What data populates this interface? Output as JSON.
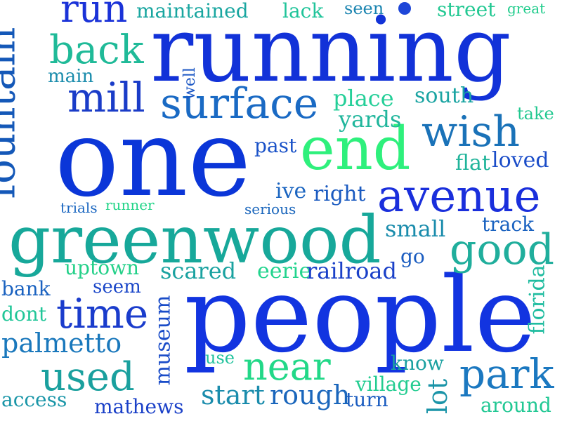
{
  "colors": {
    "dark_blue": "#0b2fd6",
    "royal_blue": "#1a3fe0",
    "mid_blue": "#1e5fc2",
    "steel_blue": "#1b78c0",
    "teal": "#17a39a",
    "aqua_green": "#18b79a",
    "mint_green": "#22e084",
    "bright_green": "#26f07a"
  },
  "words": [
    {
      "text": "running",
      "color": "#1232d8"
    },
    {
      "text": "one",
      "color": "#0b36d8"
    },
    {
      "text": "people",
      "color": "#1234e0"
    },
    {
      "text": "greenwood",
      "color": "#17a89a"
    },
    {
      "text": "fountain",
      "color": "#1458b8"
    },
    {
      "text": "end",
      "color": "#2ef07c"
    },
    {
      "text": "avenue",
      "color": "#1a2fdc"
    },
    {
      "text": "surface",
      "color": "#1a6ac4"
    },
    {
      "text": "run",
      "color": "#1a32d8"
    },
    {
      "text": "back",
      "color": "#1fba98"
    },
    {
      "text": "mill",
      "color": "#1a3cc8"
    },
    {
      "text": "wish",
      "color": "#1a72b8"
    },
    {
      "text": "good",
      "color": "#20ae9c"
    },
    {
      "text": "time",
      "color": "#1a3ccc"
    },
    {
      "text": "park",
      "color": "#1b78c0"
    },
    {
      "text": "near",
      "color": "#22d888"
    },
    {
      "text": "used",
      "color": "#1aa09e"
    },
    {
      "text": "maintained",
      "color": "#19a6a0"
    },
    {
      "text": "lack",
      "color": "#20c49a"
    },
    {
      "text": "seen",
      "color": "#1a84b0"
    },
    {
      "text": "street",
      "color": "#22c892"
    },
    {
      "text": "great",
      "color": "#20cc8c"
    },
    {
      "text": "main",
      "color": "#1a8cac"
    },
    {
      "text": "well",
      "color": "#1a56c4"
    },
    {
      "text": "place",
      "color": "#24cf98"
    },
    {
      "text": "south",
      "color": "#1aa4a2"
    },
    {
      "text": "yards",
      "color": "#20b69c"
    },
    {
      "text": "take",
      "color": "#22c890"
    },
    {
      "text": "past",
      "color": "#1a52c8"
    },
    {
      "text": "flat",
      "color": "#20b49a"
    },
    {
      "text": "loved",
      "color": "#1a4cc8"
    },
    {
      "text": "ive",
      "color": "#1a64c0"
    },
    {
      "text": "right",
      "color": "#1a5ac0"
    },
    {
      "text": "trials",
      "color": "#1a66c0"
    },
    {
      "text": "runner",
      "color": "#22d488"
    },
    {
      "text": "serious",
      "color": "#1a66bc"
    },
    {
      "text": "small",
      "color": "#1a8cac"
    },
    {
      "text": "track",
      "color": "#1a62c0"
    },
    {
      "text": "uptown",
      "color": "#22d088"
    },
    {
      "text": "scared",
      "color": "#1aa2a0"
    },
    {
      "text": "eerie",
      "color": "#22d48e"
    },
    {
      "text": "railroad",
      "color": "#1a40c8"
    },
    {
      "text": "go",
      "color": "#1a5cc0"
    },
    {
      "text": "florida",
      "color": "#20bca0"
    },
    {
      "text": "bank",
      "color": "#1a62c0"
    },
    {
      "text": "seem",
      "color": "#1a46c8"
    },
    {
      "text": "dont",
      "color": "#20c698"
    },
    {
      "text": "museum",
      "color": "#1a4cc8"
    },
    {
      "text": "palmetto",
      "color": "#1a78bc"
    },
    {
      "text": "use",
      "color": "#20c29c"
    },
    {
      "text": "know",
      "color": "#1aa0a0"
    },
    {
      "text": "village",
      "color": "#22cc90"
    },
    {
      "text": "lot",
      "color": "#1a94a8"
    },
    {
      "text": "access",
      "color": "#1a96a8"
    },
    {
      "text": "mathews",
      "color": "#1a40c8"
    },
    {
      "text": "start",
      "color": "#1a8cac"
    },
    {
      "text": "rough",
      "color": "#1a66bc"
    },
    {
      "text": "turn",
      "color": "#1a5cc0"
    },
    {
      "text": "around",
      "color": "#22c894"
    }
  ]
}
